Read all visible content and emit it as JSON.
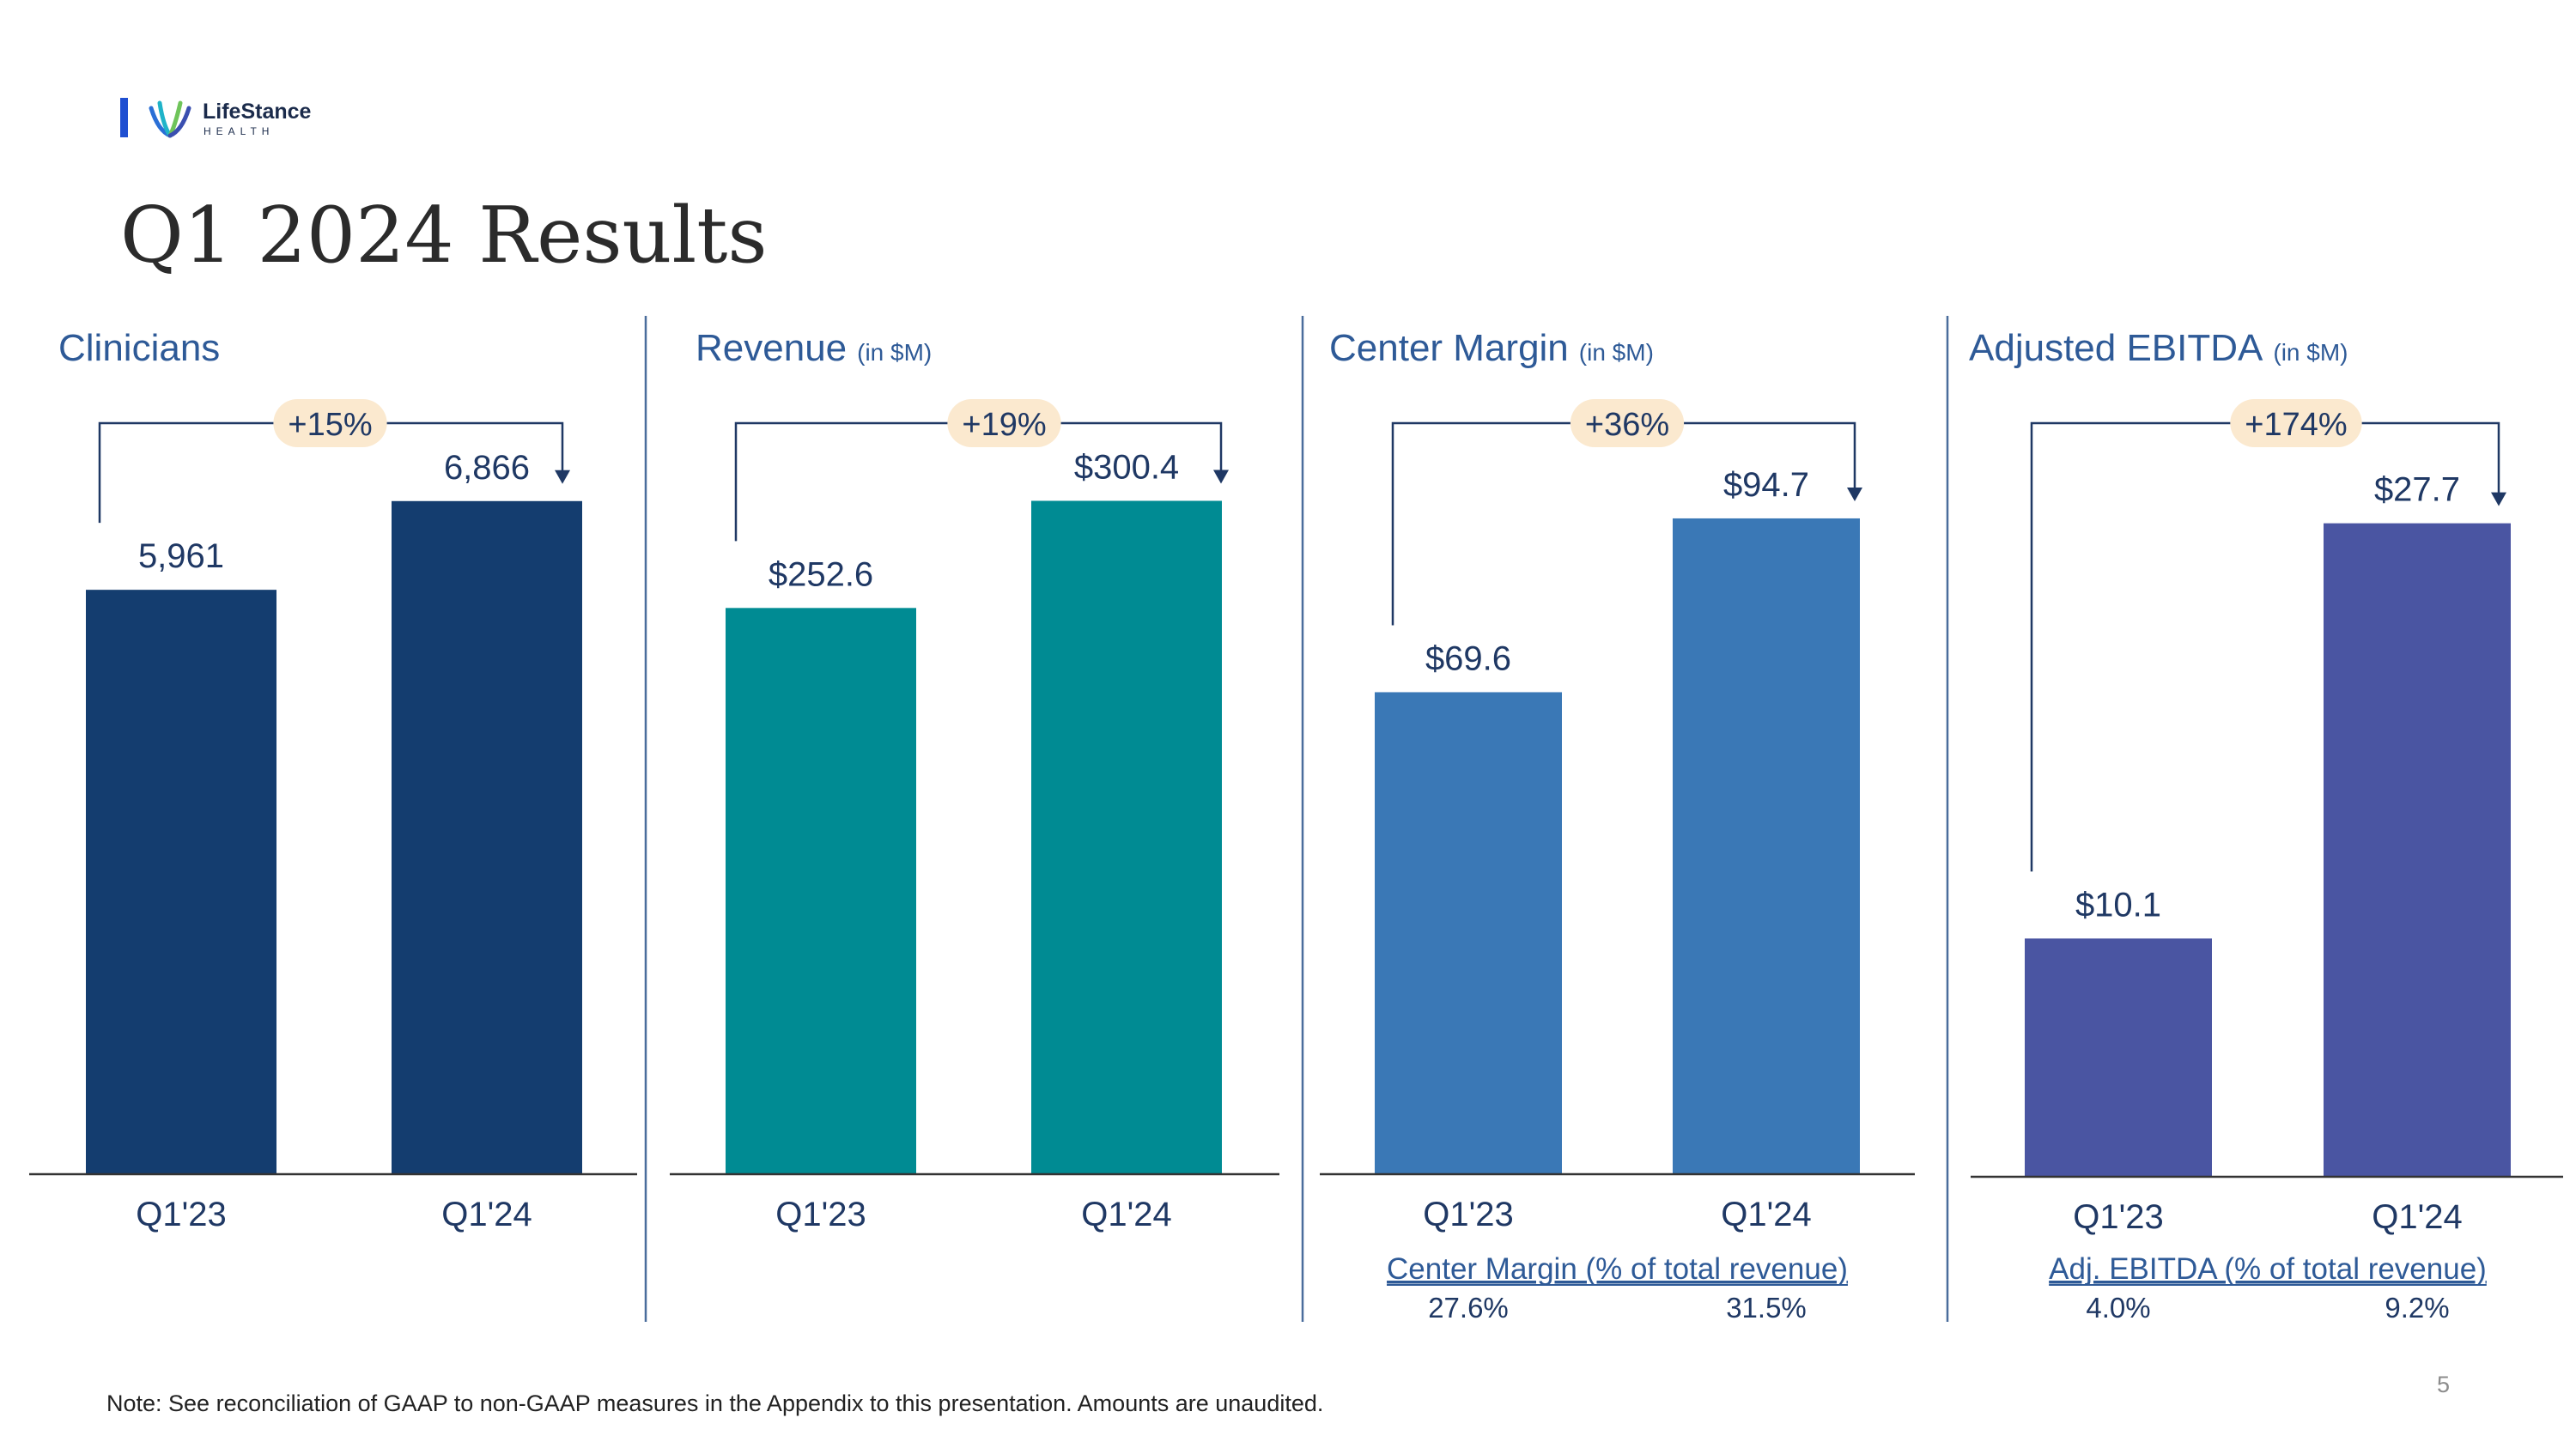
{
  "logo": {
    "name": "LifeStance",
    "sub": "HEALTH"
  },
  "page_title": "Q1 2024 Results",
  "note": "Note:  See reconciliation of GAAP to non-GAAP measures in the Appendix to this presentation. Amounts are unaudited.",
  "page_number": "5",
  "colors": {
    "clinicians": "#143d6f",
    "revenue": "#008b93",
    "center_margin": "#3a78b6",
    "adjusted_ebitda": "#4a55a2",
    "change_badge": "#fbe9cf",
    "text": "#1f3864",
    "connector": "#1f3864",
    "divider": "#4a6d9c"
  },
  "chart_data": [
    {
      "type": "bar",
      "title": "Clinicians",
      "subtitle": "",
      "categories": [
        "Q1'23",
        "Q1'24"
      ],
      "values": [
        5961,
        6866
      ],
      "value_labels": [
        "5,961",
        "6,866"
      ],
      "change_label": "+15%",
      "ylim": [
        0,
        8300
      ],
      "grid": false,
      "footer": null
    },
    {
      "type": "bar",
      "title": "Revenue",
      "subtitle": "(in $M)",
      "categories": [
        "Q1'23",
        "Q1'24"
      ],
      "values": [
        252.6,
        300.4
      ],
      "value_labels": [
        "$252.6",
        "$300.4"
      ],
      "change_label": "+19%",
      "ylim": [
        0,
        363
      ],
      "grid": false,
      "footer": null
    },
    {
      "type": "bar",
      "title": "Center Margin",
      "subtitle": "(in $M)",
      "categories": [
        "Q1'23",
        "Q1'24"
      ],
      "values": [
        69.6,
        94.7
      ],
      "value_labels": [
        "$69.6",
        "$94.7"
      ],
      "change_label": "+36%",
      "ylim": [
        0,
        117.5
      ],
      "grid": false,
      "footer": {
        "label": "Center Margin (% of total revenue)",
        "values": [
          "27.6%",
          "31.5%"
        ]
      }
    },
    {
      "type": "bar",
      "title": "Adjusted EBITDA",
      "subtitle": "(in $M)",
      "categories": [
        "Q1'23",
        "Q1'24"
      ],
      "values": [
        10.1,
        27.7
      ],
      "value_labels": [
        "$10.1",
        "$27.7"
      ],
      "change_label": "+174%",
      "ylim": [
        0,
        34.6
      ],
      "grid": false,
      "footer": {
        "label": "Adj. EBITDA (% of total revenue)",
        "values": [
          "4.0%",
          "9.2%"
        ]
      }
    }
  ]
}
